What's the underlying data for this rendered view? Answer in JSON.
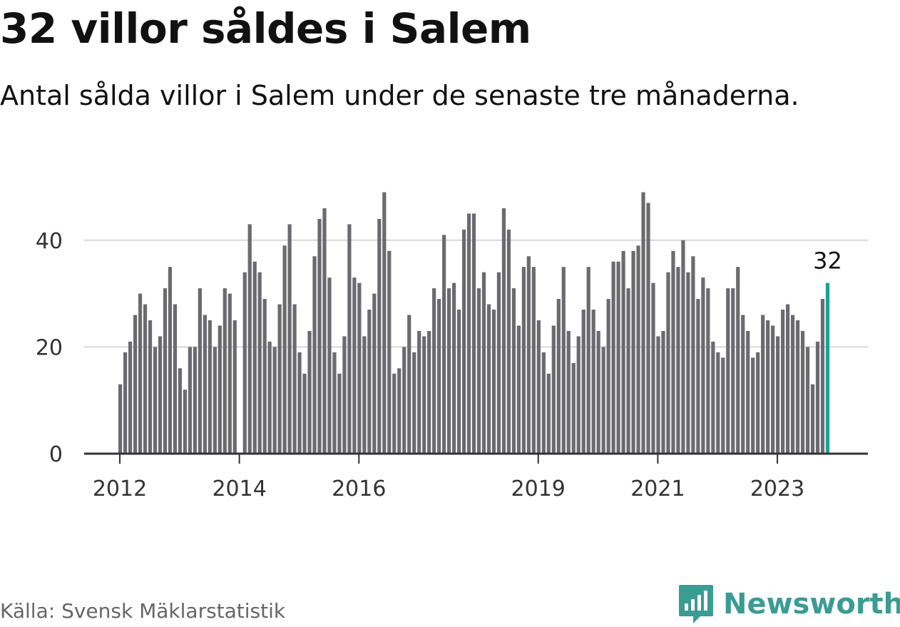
{
  "title": "32 villor såldes i Salem",
  "subtitle": "Antal sålda villor i Salem under de senaste tre månaderna.",
  "source": "Källa: Svensk Mäklarstatistik",
  "logo": {
    "name": "Newsworthy",
    "icon": "newsworthy-logo-icon"
  },
  "colors": {
    "bar": "#6b6b6f",
    "highlight": "#19a394",
    "grid": "#d9d9d9",
    "axis": "#333333",
    "brand": "#3a9c93"
  },
  "chart_data": {
    "type": "bar",
    "title": "32 villor såldes i Salem",
    "xlabel": "",
    "ylabel": "",
    "ylim": [
      0,
      50
    ],
    "yticks": [
      0,
      20,
      40
    ],
    "xtick_labels": [
      {
        "label": "2012",
        "index": 0
      },
      {
        "label": "2014",
        "index": 24
      },
      {
        "label": "2016",
        "index": 48
      },
      {
        "label": "2019",
        "index": 84
      },
      {
        "label": "2021",
        "index": 108
      },
      {
        "label": "2023",
        "index": 132
      }
    ],
    "highlight": {
      "index": 142,
      "label": "32"
    },
    "values": [
      13,
      19,
      21,
      26,
      30,
      28,
      25,
      20,
      22,
      31,
      35,
      28,
      16,
      12,
      20,
      20,
      31,
      26,
      25,
      20,
      24,
      31,
      30,
      25,
      0,
      34,
      43,
      36,
      34,
      29,
      21,
      20,
      28,
      39,
      43,
      28,
      19,
      15,
      23,
      37,
      44,
      46,
      33,
      19,
      15,
      22,
      43,
      33,
      32,
      22,
      27,
      30,
      44,
      49,
      38,
      15,
      16,
      20,
      26,
      19,
      23,
      22,
      23,
      31,
      29,
      41,
      31,
      32,
      27,
      42,
      45,
      45,
      31,
      34,
      28,
      27,
      34,
      46,
      42,
      31,
      24,
      35,
      37,
      35,
      25,
      19,
      15,
      24,
      29,
      35,
      23,
      17,
      22,
      27,
      35,
      27,
      23,
      20,
      29,
      36,
      36,
      38,
      31,
      38,
      39,
      49,
      47,
      32,
      22,
      23,
      34,
      38,
      35,
      40,
      34,
      37,
      29,
      33,
      31,
      21,
      19,
      18,
      31,
      31,
      35,
      26,
      23,
      18,
      19,
      26,
      25,
      24,
      22,
      27,
      28,
      26,
      25,
      23,
      20,
      13,
      21,
      29,
      32
    ]
  }
}
